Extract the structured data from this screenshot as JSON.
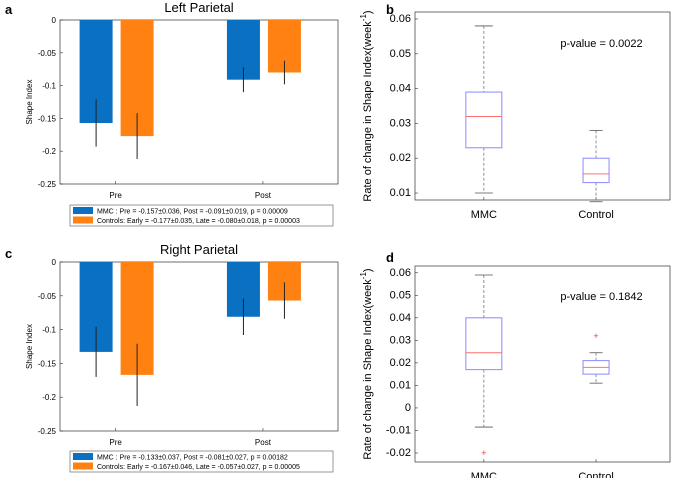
{
  "colors": {
    "mmc": "#0a70c2",
    "controls": "#ff8112",
    "box": "#8a8aff",
    "median": "#ff7070",
    "whisker": "#777777"
  },
  "chart_data": [
    {
      "type": "bar",
      "panel_label": "a",
      "title": "Left Parietal",
      "ylabel": "Shape Index",
      "ylim": [
        -0.25,
        0
      ],
      "yticks": [
        "0",
        "-0.05",
        "-0.1",
        "-0.15",
        "-0.2",
        "-0.25"
      ],
      "ytick_values": [
        0,
        -0.05,
        -0.1,
        -0.15,
        -0.2,
        -0.25
      ],
      "categories": [
        "Pre",
        "Post"
      ],
      "series": [
        {
          "name": "MMC",
          "values": [
            -0.157,
            -0.091
          ],
          "errors": [
            0.036,
            0.019
          ]
        },
        {
          "name": "Controls",
          "values": [
            -0.177,
            -0.08
          ],
          "errors": [
            0.035,
            0.018
          ]
        }
      ],
      "legend": [
        "MMC     : Pre = -0.157±0.036,   Post = -0.091±0.019, p  = 0.00009",
        "Controls: Early = -0.177±0.035,   Late = -0.080±0.018, p  = 0.00003"
      ],
      "legend_position": "bottom"
    },
    {
      "type": "box",
      "panel_label": "b",
      "ylabel": "Rate of change in Shape Index(week",
      "ylabel_sup": "-1",
      "ylabel_end": ")",
      "ylim": [
        0.008,
        0.062
      ],
      "yticks": [
        "0.01",
        "0.02",
        "0.03",
        "0.04",
        "0.05",
        "0.06"
      ],
      "ytick_values": [
        0.01,
        0.02,
        0.03,
        0.04,
        0.05,
        0.06
      ],
      "categories": [
        "MMC",
        "Control"
      ],
      "boxes": [
        {
          "min": 0.01,
          "q1": 0.023,
          "median": 0.032,
          "q3": 0.039,
          "max": 0.058,
          "outliers": []
        },
        {
          "min": 0.0075,
          "q1": 0.013,
          "median": 0.0155,
          "q3": 0.02,
          "max": 0.028,
          "outliers": []
        }
      ],
      "annotation": "p-value =  0.0022"
    },
    {
      "type": "bar",
      "panel_label": "c",
      "title": "Right Parietal",
      "ylabel": "Shape Index",
      "ylim": [
        -0.25,
        0
      ],
      "yticks": [
        "0",
        "-0.05",
        "-0.1",
        "-0.15",
        "-0.2",
        "-0.25"
      ],
      "ytick_values": [
        0,
        -0.05,
        -0.1,
        -0.15,
        -0.2,
        -0.25
      ],
      "categories": [
        "Pre",
        "Post"
      ],
      "series": [
        {
          "name": "MMC",
          "values": [
            -0.133,
            -0.081
          ],
          "errors": [
            0.037,
            0.027
          ]
        },
        {
          "name": "Controls",
          "values": [
            -0.167,
            -0.057
          ],
          "errors": [
            0.046,
            0.027
          ]
        }
      ],
      "legend": [
        "MMC     : Pre = -0.133±0.037,   Post = -0.081±0.027, p  = 0.00182",
        "Controls: Early = -0.167±0.046,   Late = -0.057±0.027, p  = 0.00005"
      ],
      "legend_position": "bottom"
    },
    {
      "type": "box",
      "panel_label": "d",
      "ylabel": "Rate of change in Shape Index(week",
      "ylabel_sup": "-1",
      "ylabel_end": ")",
      "ylim": [
        -0.024,
        0.063
      ],
      "yticks": [
        "0.06",
        "0.05",
        "0.04",
        "0.03",
        "0.02",
        "0.01",
        "0",
        "-0.01",
        "-0.02"
      ],
      "ytick_values": [
        0.06,
        0.05,
        0.04,
        0.03,
        0.02,
        0.01,
        0,
        -0.01,
        -0.02
      ],
      "categories": [
        "MMC",
        "Control"
      ],
      "boxes": [
        {
          "min": -0.0085,
          "q1": 0.017,
          "median": 0.0245,
          "q3": 0.04,
          "max": 0.059,
          "outliers": [
            -0.02
          ]
        },
        {
          "min": 0.011,
          "q1": 0.015,
          "median": 0.018,
          "q3": 0.021,
          "max": 0.0245,
          "outliers": [
            0.032
          ]
        }
      ],
      "annotation": "p-value = 0.1842"
    }
  ]
}
